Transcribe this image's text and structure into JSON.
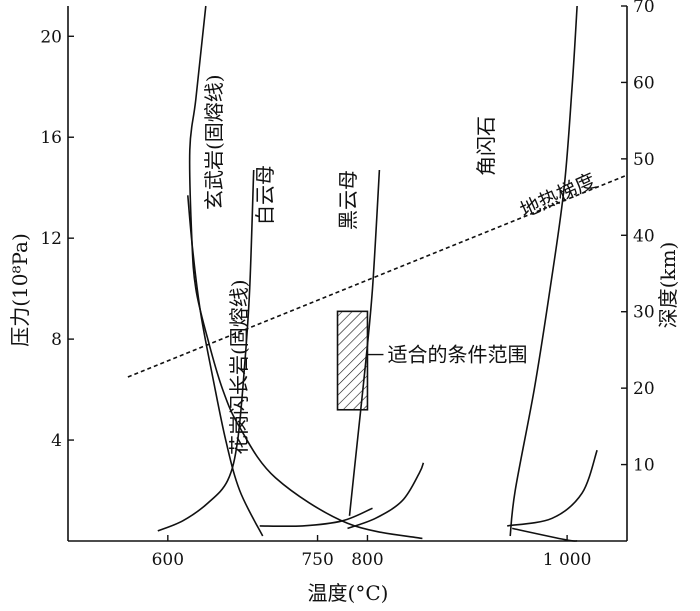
{
  "chart_data": {
    "type": "line",
    "xlabel": "温度(°C)",
    "ylabel_left": "压力(10⁸Pa)",
    "ylabel_right": "深度(km)",
    "xlim": [
      500,
      1060
    ],
    "ylim_left": [
      0,
      21.2
    ],
    "ylim_right": [
      0,
      70
    ],
    "x_ticks": [
      {
        "value": 600,
        "label": "600"
      },
      {
        "value": 750,
        "label": "750"
      },
      {
        "value": 800,
        "label": "800"
      },
      {
        "value": 1000,
        "label": "1 000"
      }
    ],
    "y_left_ticks": [
      {
        "value": 4,
        "label": "4"
      },
      {
        "value": 8,
        "label": "8"
      },
      {
        "value": 12,
        "label": "12"
      },
      {
        "value": 16,
        "label": "16"
      },
      {
        "value": 20,
        "label": "20"
      }
    ],
    "y_right_ticks": [
      {
        "value": 10,
        "label": "10"
      },
      {
        "value": 20,
        "label": "20"
      },
      {
        "value": 30,
        "label": "30"
      },
      {
        "value": 40,
        "label": "40"
      },
      {
        "value": 50,
        "label": "50"
      },
      {
        "value": 60,
        "label": "60"
      },
      {
        "value": 70,
        "label": "70"
      }
    ],
    "series": [
      {
        "name": "玄武岩(固熔线)",
        "points": [
          [
            638,
            21.2
          ],
          [
            628,
            17.5
          ],
          [
            622,
            15.5
          ],
          [
            624,
            12
          ],
          [
            628,
            10
          ],
          [
            640,
            8
          ],
          [
            655,
            6
          ],
          [
            672,
            4.5
          ],
          [
            708,
            2.5
          ],
          [
            780,
            0.7
          ],
          [
            855,
            0.1
          ]
        ]
      },
      {
        "name": "花岗闪长岩(固熔线)",
        "points": [
          [
            620,
            13.7
          ],
          [
            625,
            11.5
          ],
          [
            633,
            9
          ],
          [
            645,
            6.5
          ],
          [
            658,
            4
          ],
          [
            672,
            2
          ],
          [
            695,
            0.2
          ]
        ]
      },
      {
        "name": "白云母",
        "points": [
          [
            686,
            14.7
          ],
          [
            682,
            10
          ],
          [
            677,
            7
          ],
          [
            670,
            4
          ],
          [
            660,
            2.4
          ],
          [
            640,
            1.5
          ],
          [
            615,
            0.8
          ],
          [
            590,
            0.4
          ]
        ]
      },
      {
        "name": "黑云母",
        "points": [
          [
            812,
            14.7
          ],
          [
            805,
            10
          ],
          [
            798,
            7
          ],
          [
            790,
            4
          ],
          [
            782,
            1
          ]
        ]
      },
      {
        "name": "角闪石",
        "points": [
          [
            1010,
            21.2
          ],
          [
            1005,
            18
          ],
          [
            997,
            14
          ],
          [
            983,
            10
          ],
          [
            967,
            6
          ],
          [
            948,
            2
          ],
          [
            943,
            0.2
          ]
        ]
      },
      {
        "name": "黑云母低压分支",
        "points": [
          [
            780,
            0.5
          ],
          [
            808,
            0.9
          ],
          [
            835,
            1.6
          ],
          [
            852,
            2.7
          ],
          [
            856,
            3.1
          ]
        ]
      },
      {
        "name": "白云母低压分支",
        "points": [
          [
            692,
            0.6
          ],
          [
            735,
            0.6
          ],
          [
            775,
            0.8
          ],
          [
            805,
            1.3
          ]
        ]
      },
      {
        "name": "角闪石低压分支",
        "points": [
          [
            940,
            0.6
          ],
          [
            985,
            0.9
          ],
          [
            1015,
            1.9
          ],
          [
            1030,
            3.6
          ]
        ]
      },
      {
        "name": "角闪石高温分支",
        "points": [
          [
            945,
            0.5
          ],
          [
            998,
            0.05
          ],
          [
            1010,
            0
          ]
        ]
      }
    ],
    "geotherm": {
      "name": "地热梯度",
      "from": [
        560,
        6.5
      ],
      "to": [
        1060,
        14.5
      ]
    },
    "suitable_zone": {
      "label": "适合的条件范围",
      "x": [
        770,
        800
      ],
      "y": [
        5.2,
        9.1
      ]
    },
    "curve_labels": [
      {
        "ref": "玄武岩(固熔线)",
        "text": "玄武岩(固熔线)"
      },
      {
        "ref": "花岗闪长岩(固熔线)",
        "text": "花岗闪长岩(固熔线)"
      },
      {
        "ref": "白云母",
        "text": "白云母"
      },
      {
        "ref": "黑云母",
        "text": "黑云母"
      },
      {
        "ref": "角闪石",
        "text": "角闪石"
      },
      {
        "ref": "地热梯度",
        "text": "地热梯度"
      }
    ]
  }
}
